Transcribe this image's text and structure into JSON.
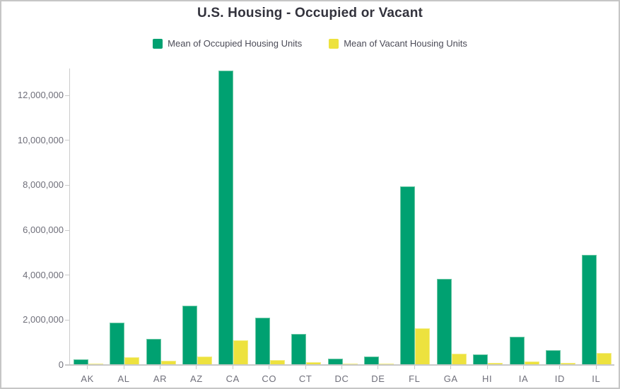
{
  "window": {
    "background": "#ffffff",
    "border_color": "#c6c6c6"
  },
  "chart": {
    "title": "U.S. Housing - Occupied or Vacant"
  },
  "style": {
    "occupied_fill": "#00a171",
    "occupied_border": "#6cc8a5",
    "vacant_fill": "#ede23e",
    "vacant_border": "#f3ed85",
    "axis_color": "#c9c9c9",
    "title_color": "#33333d",
    "legend_text_color": "#4b4b57",
    "tick_label_color": "#6f6f7a"
  },
  "chart_data": {
    "type": "bar",
    "title": "U.S. Housing - Occupied or Vacant",
    "xlabel": "",
    "ylabel": "",
    "grid": false,
    "legend_position": "top",
    "categories": [
      "AK",
      "AL",
      "AR",
      "AZ",
      "CA",
      "CO",
      "CT",
      "DC",
      "DE",
      "FL",
      "GA",
      "HI",
      "IA",
      "ID",
      "IL"
    ],
    "series": [
      {
        "name": "Mean of Occupied Housing Units",
        "color": "#00a171",
        "values": [
          240000,
          1870000,
          1160000,
          2650000,
          13120000,
          2100000,
          1380000,
          290000,
          370000,
          7950000,
          3830000,
          460000,
          1270000,
          650000,
          4910000
        ]
      },
      {
        "name": "Mean of Vacant Housing Units",
        "color": "#ede23e",
        "values": [
          50000,
          360000,
          180000,
          380000,
          1110000,
          220000,
          135000,
          30000,
          60000,
          1620000,
          500000,
          100000,
          160000,
          100000,
          520000
        ]
      }
    ],
    "ylim": [
      0,
      13200000
    ],
    "y_ticks": [
      0,
      2000000,
      4000000,
      6000000,
      8000000,
      10000000,
      12000000
    ],
    "y_tick_labels": [
      "0",
      "2,000,000",
      "4,000,000",
      "6,000,000",
      "8,000,000",
      "10,000,000",
      "12,000,000"
    ]
  }
}
